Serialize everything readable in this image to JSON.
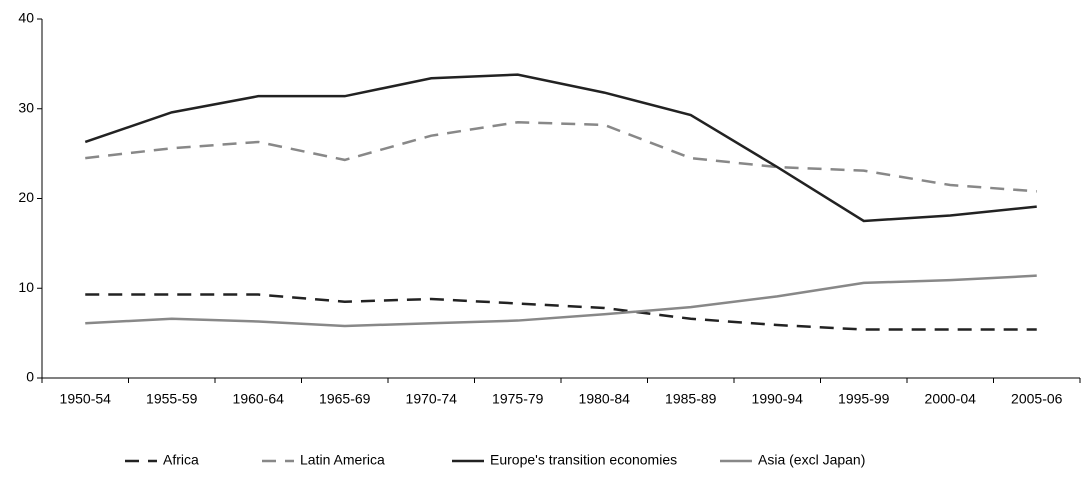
{
  "chart_data": {
    "type": "line",
    "categories": [
      "1950-54",
      "1955-59",
      "1960-64",
      "1965-69",
      "1970-74",
      "1975-79",
      "1980-84",
      "1985-89",
      "1990-94",
      "1995-99",
      "2000-04",
      "2005-06"
    ],
    "series": [
      {
        "name": "Africa",
        "color": "#222222",
        "dash": "dashed",
        "values": [
          9.3,
          9.3,
          9.3,
          8.5,
          8.8,
          8.3,
          7.8,
          6.6,
          5.9,
          5.4,
          5.4,
          5.4
        ]
      },
      {
        "name": "Latin America",
        "color": "#888888",
        "dash": "dashed",
        "values": [
          24.5,
          25.6,
          26.3,
          24.3,
          27.0,
          28.5,
          28.2,
          24.5,
          23.5,
          23.1,
          21.5,
          20.8
        ]
      },
      {
        "name": "Europe's transition economies",
        "color": "#222222",
        "dash": "solid",
        "values": [
          26.3,
          29.6,
          31.4,
          31.4,
          33.4,
          33.8,
          31.8,
          29.3,
          23.5,
          17.5,
          18.1,
          19.1
        ]
      },
      {
        "name": "Asia (excl Japan)",
        "color": "#888888",
        "dash": "solid",
        "values": [
          6.1,
          6.6,
          6.3,
          5.8,
          6.1,
          6.4,
          7.1,
          7.9,
          9.1,
          10.6,
          10.9,
          11.4
        ]
      }
    ],
    "ylim": [
      0,
      40
    ],
    "yticks": [
      0,
      10,
      20,
      30,
      40
    ],
    "grid": false,
    "legend": "bottom"
  }
}
